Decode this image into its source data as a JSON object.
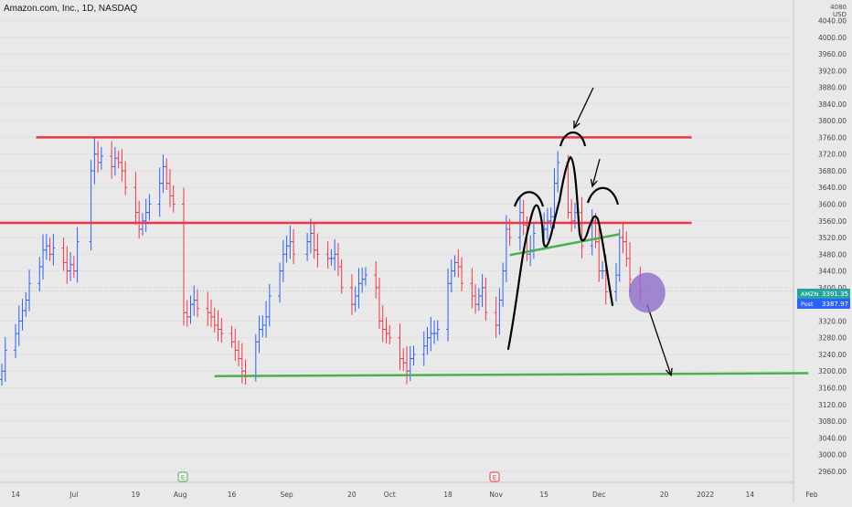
{
  "header": {
    "title": "Amazon.com, Inc., 1D, NASDAQ"
  },
  "axis_unit": "USD",
  "axis_top_fragment": "4080",
  "labels": {
    "amzn_tag": "AMZN",
    "amzn_price": "3391.35",
    "post_tag": "Post",
    "post_price": "3387.97"
  },
  "earnings_badges": [
    "E",
    "E"
  ],
  "colors": {
    "background": "#e9e9e9",
    "up_bar": "#2962ff",
    "down_bar": "#f23645",
    "resistance_line": "#f23645",
    "support_line": "#4caf50",
    "neckline": "#4caf50",
    "drawing": "#000000",
    "circle_fill": "#8e6cc9",
    "amzn_tag_bg": "#26a69a",
    "post_tag_bg": "#2962ff"
  },
  "chart_data": {
    "type": "ohlc",
    "title": "Amazon.com, Inc., 1D, NASDAQ",
    "ylabel": "USD",
    "ylim": [
      2940,
      4080
    ],
    "y_ticks": [
      2960,
      3000,
      3040,
      3080,
      3120,
      3160,
      3200,
      3240,
      3280,
      3320,
      3360,
      3400,
      3440,
      3480,
      3520,
      3560,
      3600,
      3640,
      3680,
      3720,
      3760,
      3800,
      3840,
      3880,
      3920,
      3960,
      4000,
      4040
    ],
    "y_tick_labels": [
      "2960.00",
      "3000.00",
      "3040.00",
      "3080.00",
      "3120.00",
      "3160.00",
      "3200.00",
      "3240.00",
      "3280.00",
      "3320.00",
      "3360.00",
      "3400.00",
      "3440.00",
      "3480.00",
      "3520.00",
      "3560.00",
      "3600.00",
      "3640.00",
      "3680.00",
      "3720.00",
      "3760.00",
      "3800.00",
      "3840.00",
      "3880.00",
      "3920.00",
      "3960.00",
      "4000.00",
      "4040.00"
    ],
    "x_start": "2021-06-10",
    "x_end": "2022-02-01",
    "x_ticks": [
      {
        "date": "2021-06-14",
        "label": "14"
      },
      {
        "date": "2021-07-01",
        "label": "Jul"
      },
      {
        "date": "2021-07-19",
        "label": "19"
      },
      {
        "date": "2021-08-01",
        "label": "Aug"
      },
      {
        "date": "2021-08-16",
        "label": "16"
      },
      {
        "date": "2021-09-01",
        "label": "Sep"
      },
      {
        "date": "2021-09-20",
        "label": "20"
      },
      {
        "date": "2021-10-01",
        "label": "Oct"
      },
      {
        "date": "2021-10-18",
        "label": "18"
      },
      {
        "date": "2021-11-01",
        "label": "Nov"
      },
      {
        "date": "2021-11-15",
        "label": "15"
      },
      {
        "date": "2021-12-01",
        "label": "Dec"
      },
      {
        "date": "2021-12-20",
        "label": "20"
      },
      {
        "date": "2022-01-01",
        "label": "2022"
      },
      {
        "date": "2022-01-14",
        "label": "14"
      },
      {
        "date": "2022-02-01",
        "label": "Feb"
      }
    ],
    "current_price": 3391.35,
    "post_price": 3387.97,
    "closes": [
      {
        "date": "2021-06-10",
        "close": 3200
      },
      {
        "date": "2021-06-11",
        "close": 3250
      },
      {
        "date": "2021-06-14",
        "close": 3290
      },
      {
        "date": "2021-06-15",
        "close": 3320
      },
      {
        "date": "2021-06-16",
        "close": 3345
      },
      {
        "date": "2021-06-17",
        "close": 3370
      },
      {
        "date": "2021-06-18",
        "close": 3410
      },
      {
        "date": "2021-06-21",
        "close": 3450
      },
      {
        "date": "2021-06-22",
        "close": 3490
      },
      {
        "date": "2021-06-23",
        "close": 3500
      },
      {
        "date": "2021-06-24",
        "close": 3480
      },
      {
        "date": "2021-06-25",
        "close": 3495
      },
      {
        "date": "2021-06-28",
        "close": 3460
      },
      {
        "date": "2021-06-29",
        "close": 3440
      },
      {
        "date": "2021-06-30",
        "close": 3455
      },
      {
        "date": "2021-07-01",
        "close": 3440
      },
      {
        "date": "2021-07-02",
        "close": 3510
      },
      {
        "date": "2021-07-06",
        "close": 3680
      },
      {
        "date": "2021-07-07",
        "close": 3720
      },
      {
        "date": "2021-07-08",
        "close": 3700
      },
      {
        "date": "2021-07-09",
        "close": 3715
      },
      {
        "date": "2021-07-12",
        "close": 3690
      },
      {
        "date": "2021-07-13",
        "close": 3710
      },
      {
        "date": "2021-07-14",
        "close": 3700
      },
      {
        "date": "2021-07-15",
        "close": 3680
      },
      {
        "date": "2021-07-16",
        "close": 3640
      },
      {
        "date": "2021-07-19",
        "close": 3580
      },
      {
        "date": "2021-07-20",
        "close": 3540
      },
      {
        "date": "2021-07-21",
        "close": 3560
      },
      {
        "date": "2021-07-22",
        "close": 3580
      },
      {
        "date": "2021-07-23",
        "close": 3600
      },
      {
        "date": "2021-07-26",
        "close": 3650
      },
      {
        "date": "2021-07-27",
        "close": 3690
      },
      {
        "date": "2021-07-28",
        "close": 3650
      },
      {
        "date": "2021-07-29",
        "close": 3620
      },
      {
        "date": "2021-07-30",
        "close": 3600
      },
      {
        "date": "2021-08-02",
        "close": 3340
      },
      {
        "date": "2021-08-03",
        "close": 3330
      },
      {
        "date": "2021-08-04",
        "close": 3360
      },
      {
        "date": "2021-08-05",
        "close": 3370
      },
      {
        "date": "2021-08-06",
        "close": 3350
      },
      {
        "date": "2021-08-09",
        "close": 3340
      },
      {
        "date": "2021-08-10",
        "close": 3330
      },
      {
        "date": "2021-08-11",
        "close": 3310
      },
      {
        "date": "2021-08-12",
        "close": 3300
      },
      {
        "date": "2021-08-13",
        "close": 3290
      },
      {
        "date": "2021-08-16",
        "close": 3270
      },
      {
        "date": "2021-08-17",
        "close": 3250
      },
      {
        "date": "2021-08-18",
        "close": 3230
      },
      {
        "date": "2021-08-19",
        "close": 3200
      },
      {
        "date": "2021-08-20",
        "close": 3190
      },
      {
        "date": "2021-08-23",
        "close": 3270
      },
      {
        "date": "2021-08-24",
        "close": 3300
      },
      {
        "date": "2021-08-25",
        "close": 3310
      },
      {
        "date": "2021-08-26",
        "close": 3330
      },
      {
        "date": "2021-08-27",
        "close": 3380
      },
      {
        "date": "2021-08-30",
        "close": 3440
      },
      {
        "date": "2021-08-31",
        "close": 3480
      },
      {
        "date": "2021-09-01",
        "close": 3500
      },
      {
        "date": "2021-09-02",
        "close": 3510
      },
      {
        "date": "2021-09-03",
        "close": 3480
      },
      {
        "date": "2021-09-07",
        "close": 3510
      },
      {
        "date": "2021-09-08",
        "close": 3530
      },
      {
        "date": "2021-09-09",
        "close": 3490
      },
      {
        "date": "2021-09-10",
        "close": 3480
      },
      {
        "date": "2021-09-13",
        "close": 3470
      },
      {
        "date": "2021-09-14",
        "close": 3470
      },
      {
        "date": "2021-09-15",
        "close": 3480
      },
      {
        "date": "2021-09-16",
        "close": 3450
      },
      {
        "date": "2021-09-17",
        "close": 3400
      },
      {
        "date": "2021-09-20",
        "close": 3360
      },
      {
        "date": "2021-09-21",
        "close": 3380
      },
      {
        "date": "2021-09-22",
        "close": 3410
      },
      {
        "date": "2021-09-23",
        "close": 3420
      },
      {
        "date": "2021-09-24",
        "close": 3430
      },
      {
        "date": "2021-09-27",
        "close": 3400
      },
      {
        "date": "2021-09-28",
        "close": 3320
      },
      {
        "date": "2021-09-29",
        "close": 3300
      },
      {
        "date": "2021-09-30",
        "close": 3290
      },
      {
        "date": "2021-10-01",
        "close": 3280
      },
      {
        "date": "2021-10-04",
        "close": 3230
      },
      {
        "date": "2021-10-05",
        "close": 3220
      },
      {
        "date": "2021-10-06",
        "close": 3200
      },
      {
        "date": "2021-10-07",
        "close": 3230
      },
      {
        "date": "2021-10-08",
        "close": 3240
      },
      {
        "date": "2021-10-11",
        "close": 3260
      },
      {
        "date": "2021-10-12",
        "close": 3280
      },
      {
        "date": "2021-10-13",
        "close": 3290
      },
      {
        "date": "2021-10-14",
        "close": 3290
      },
      {
        "date": "2021-10-15",
        "close": 3300
      },
      {
        "date": "2021-10-18",
        "close": 3410
      },
      {
        "date": "2021-10-19",
        "close": 3440
      },
      {
        "date": "2021-10-20",
        "close": 3460
      },
      {
        "date": "2021-10-21",
        "close": 3450
      },
      {
        "date": "2021-10-22",
        "close": 3410
      },
      {
        "date": "2021-10-25",
        "close": 3380
      },
      {
        "date": "2021-10-26",
        "close": 3360
      },
      {
        "date": "2021-10-27",
        "close": 3380
      },
      {
        "date": "2021-10-28",
        "close": 3400
      },
      {
        "date": "2021-10-29",
        "close": 3340
      },
      {
        "date": "2021-11-01",
        "close": 3310
      },
      {
        "date": "2021-11-02",
        "close": 3370
      },
      {
        "date": "2021-11-03",
        "close": 3440
      },
      {
        "date": "2021-11-04",
        "close": 3540
      },
      {
        "date": "2021-11-05",
        "close": 3520
      },
      {
        "date": "2021-11-08",
        "close": 3580
      },
      {
        "date": "2021-11-09",
        "close": 3550
      },
      {
        "date": "2021-11-10",
        "close": 3480
      },
      {
        "date": "2021-11-11",
        "close": 3490
      },
      {
        "date": "2021-11-12",
        "close": 3530
      },
      {
        "date": "2021-11-15",
        "close": 3540
      },
      {
        "date": "2021-11-16",
        "close": 3560
      },
      {
        "date": "2021-11-17",
        "close": 3570
      },
      {
        "date": "2021-11-18",
        "close": 3650
      },
      {
        "date": "2021-11-19",
        "close": 3700
      },
      {
        "date": "2021-11-22",
        "close": 3580
      },
      {
        "date": "2021-11-23",
        "close": 3560
      },
      {
        "date": "2021-11-24",
        "close": 3580
      },
      {
        "date": "2021-11-26",
        "close": 3500
      },
      {
        "date": "2021-11-29",
        "close": 3560
      },
      {
        "date": "2021-11-30",
        "close": 3510
      },
      {
        "date": "2021-12-01",
        "close": 3440
      },
      {
        "date": "2021-12-02",
        "close": 3440
      },
      {
        "date": "2021-12-03",
        "close": 3390
      },
      {
        "date": "2021-12-06",
        "close": 3430
      },
      {
        "date": "2021-12-07",
        "close": 3520
      },
      {
        "date": "2021-12-08",
        "close": 3510
      },
      {
        "date": "2021-12-09",
        "close": 3470
      },
      {
        "date": "2021-12-10",
        "close": 3420
      },
      {
        "date": "2021-12-13",
        "close": 3391.35
      }
    ],
    "annotations": {
      "resistance_upper": {
        "y": 3760,
        "x_start": "2021-06-20",
        "x_end": "2021-12-28"
      },
      "resistance_lower": {
        "y": 3555,
        "x_start": "2021-06-05",
        "x_end": "2021-12-28"
      },
      "support_line": {
        "y_start": 3188,
        "y_end": 3195,
        "x_start": "2021-08-11",
        "x_end": "2022-01-31"
      },
      "neckline": {
        "y_start": 3478,
        "y_end": 3528,
        "x_start": "2021-11-05",
        "x_end": "2021-12-07"
      },
      "target_circle": {
        "x": "2021-12-15",
        "y": 3388
      },
      "target_arrow": {
        "x_start": "2021-12-15",
        "y_start": 3360,
        "x_end": "2021-12-22",
        "y_end": 3190
      }
    }
  }
}
